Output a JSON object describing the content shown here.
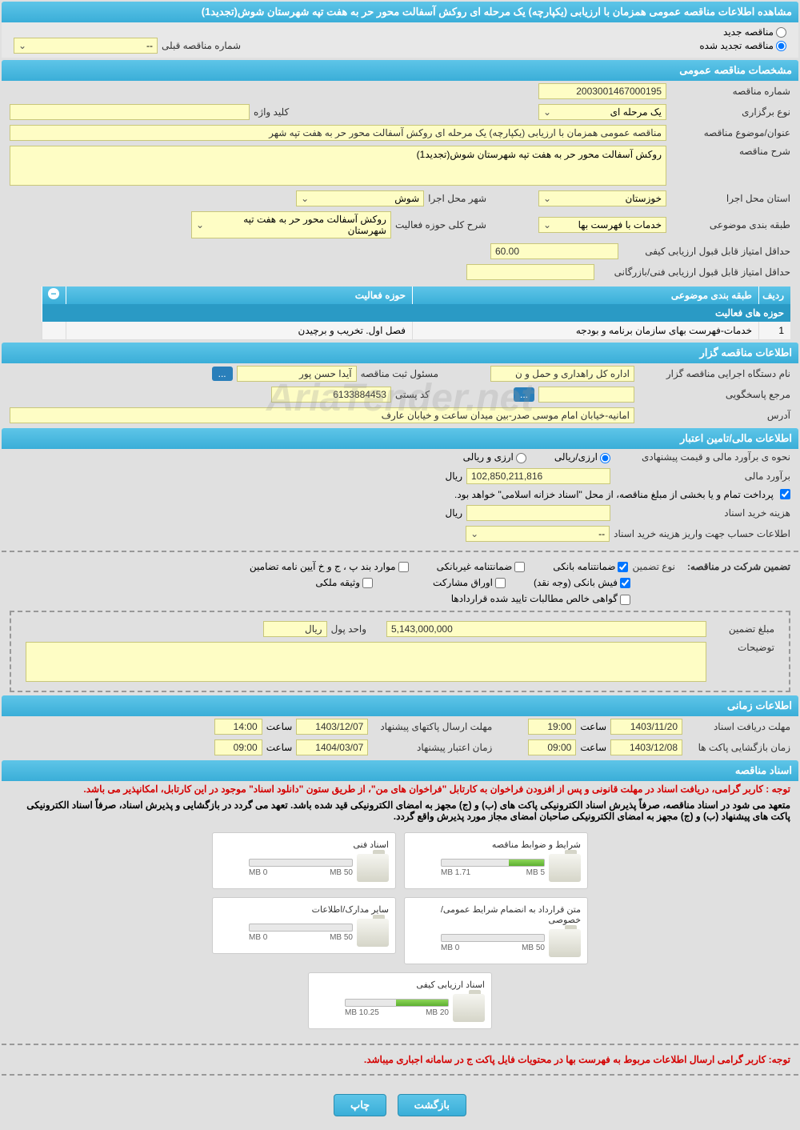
{
  "main_title": "مشاهده اطلاعات مناقصه عمومی همزمان با ارزیابی (یکپارچه) یک مرحله ای روکش آسفالت محور حر به هفت تپه شهرستان شوش(تجدید1)",
  "tender_options": {
    "new_label": "مناقصه جدید",
    "renewed_label": "مناقصه تجدید شده",
    "prev_number_label": "شماره مناقصه قبلی",
    "prev_number_value": "--"
  },
  "section_general": {
    "title": "مشخصات مناقصه عمومی",
    "tender_number_label": "شماره مناقصه",
    "tender_number": "2003001467000195",
    "type_label": "نوع برگزاری",
    "type_value": "یک مرحله ای",
    "keyword_label": "کلید واژه",
    "keyword_value": "",
    "subject_label": "عنوان/موضوع مناقصه",
    "subject_value": "مناقصه عمومی همزمان با ارزیابی (یکپارچه) یک مرحله ای روکش آسفالت محور حر به هفت تپه شهر",
    "description_label": "شرح مناقصه",
    "description_value": "روکش آسفالت محور حر به هفت تپه شهرستان شوش(تجدید1)",
    "province_label": "استان محل اجرا",
    "province_value": "خوزستان",
    "city_label": "شهر محل اجرا",
    "city_value": "شوش",
    "category_label": "طبقه بندی موضوعی",
    "category_value": "خدمات با فهرست بها",
    "activity_desc_label": "شرح کلی حوزه فعالیت",
    "activity_desc_value": "روکش آسفالت محور حر به هفت تپه شهرستان",
    "quality_score_label": "حداقل امتیاز قابل قبول ارزیابی کیفی",
    "quality_score_value": "60.00",
    "tech_score_label": "حداقل امتیاز قابل قبول ارزیابی فنی/بازرگانی",
    "tech_score_value": ""
  },
  "activity_table": {
    "title": "حوزه های فعالیت",
    "col_row": "ردیف",
    "col_category": "طبقه بندی موضوعی",
    "col_activity": "حوزه فعالیت",
    "rows": [
      {
        "num": "1",
        "category": "خدمات-فهرست بهای سازمان برنامه و بودجه",
        "activity": "فصل اول. تخریب و برچیدن"
      }
    ]
  },
  "section_organizer": {
    "title": "اطلاعات مناقصه گزار",
    "org_name_label": "نام دستگاه اجرایی مناقصه گزار",
    "org_name_value": "اداره کل راهداری و حمل و ن",
    "responsible_label": "مسئول ثبت مناقصه",
    "responsible_value": "آیدا حسن پور",
    "response_ref_label": "مرجع پاسخگویی",
    "response_ref_value": "",
    "postal_label": "کد پستی",
    "postal_value": "6133884453",
    "address_label": "آدرس",
    "address_value": "امانیه-خیابان امام موسی صدر-بین میدان ساعت و خیابان عارف"
  },
  "section_financial": {
    "title": "اطلاعات مالی/تامین اعتبار",
    "estimate_method_label": "نحوه ی برآورد مالی و قیمت پیشنهادی",
    "option_rial": "ارزی/ریالی",
    "option_currency": "ارزی و ریالی",
    "estimate_label": "برآورد مالی",
    "estimate_value": "102,850,211,816",
    "currency_unit": "ریال",
    "payment_note": "پرداخت تمام و یا بخشی از مبلغ مناقصه، از محل \"اسناد خزانه اسلامی\" خواهد بود.",
    "doc_cost_label": "هزینه خرید اسناد",
    "doc_cost_value": "",
    "account_info_label": "اطلاعات حساب جهت واریز هزینه خرید اسناد",
    "account_info_value": "--"
  },
  "guarantee": {
    "main_label": "تضمین شرکت در مناقصه:",
    "type_label": "نوع تضمین",
    "opt_bank_guarantee": "ضمانتنامه بانکی",
    "opt_nonbank_guarantee": "ضمانتنامه غیربانکی",
    "opt_bond_cases": "موارد بند پ ، ج و خ آیین نامه تضامین",
    "opt_bank_receipt": "فیش بانکی (وجه نقد)",
    "opt_bonds": "اوراق مشارکت",
    "opt_property": "وثیقه ملکی",
    "opt_certificate": "گواهی خالص مطالبات تایید شده قراردادها",
    "amount_label": "مبلغ تضمین",
    "amount_value": "5,143,000,000",
    "unit_label": "واحد پول",
    "unit_value": "ریال",
    "notes_label": "توضیحات",
    "notes_value": ""
  },
  "section_time": {
    "title": "اطلاعات زمانی",
    "receive_deadline_label": "مهلت دریافت اسناد",
    "receive_deadline_date": "1403/11/20",
    "receive_deadline_time": "19:00",
    "send_deadline_label": "مهلت ارسال پاکتهای پیشنهاد",
    "send_deadline_date": "1403/12/07",
    "send_deadline_time": "14:00",
    "opening_label": "زمان بازگشایی پاکت ها",
    "opening_date": "1403/12/08",
    "opening_time": "09:00",
    "validity_label": "زمان اعتبار پیشنهاد",
    "validity_date": "1404/03/07",
    "validity_time": "09:00",
    "time_label": "ساعت"
  },
  "section_docs": {
    "title": "اسناد مناقصه",
    "note1": "توجه : کاربر گرامی، دریافت اسناد در مهلت قانونی و پس از افزودن فراخوان به کارتابل \"فراخوان های من\"، از طریق ستون \"دانلود اسناد\" موجود در این کارتابل، امکانپذیر می باشد.",
    "note2": "متعهد می شود در اسناد مناقصه، صرفاً پذیرش اسناد الکترونیکی پاکت های (ب) و (ج) مجهز به امضای الکترونیکی قید شده باشد. تعهد می گردد در بازگشایی و پذیرش اسناد، صرفاً اسناد الکترونیکی پاکت های پیشنهاد (ب) و (ج) مجهز به امضای الکترونیکی صاحبان امضای مجاز مورد پذیرش واقع گردد.",
    "cards": [
      {
        "title": "شرایط و ضوابط مناقصه",
        "used": "1.71 MB",
        "total": "5 MB",
        "fill_pct": 34
      },
      {
        "title": "اسناد فنی",
        "used": "0 MB",
        "total": "50 MB",
        "fill_pct": 0
      },
      {
        "title": "متن قرارداد به انضمام شرایط عمومی/خصوصی",
        "used": "0 MB",
        "total": "50 MB",
        "fill_pct": 0
      },
      {
        "title": "سایر مدارک/اطلاعات",
        "used": "0 MB",
        "total": "50 MB",
        "fill_pct": 0
      },
      {
        "title": "اسناد ارزیابی کیفی",
        "used": "10.25 MB",
        "total": "20 MB",
        "fill_pct": 51
      }
    ],
    "footer_note": "توجه: کاربر گرامی ارسال اطلاعات مربوط به فهرست بها در محتویات فایل پاکت ج در سامانه اجباری میباشد."
  },
  "buttons": {
    "back": "بازگشت",
    "print": "چاپ"
  },
  "colors": {
    "header_bg": "#3aaed8",
    "field_bg": "#fefdc5",
    "note_red": "#d40000"
  }
}
